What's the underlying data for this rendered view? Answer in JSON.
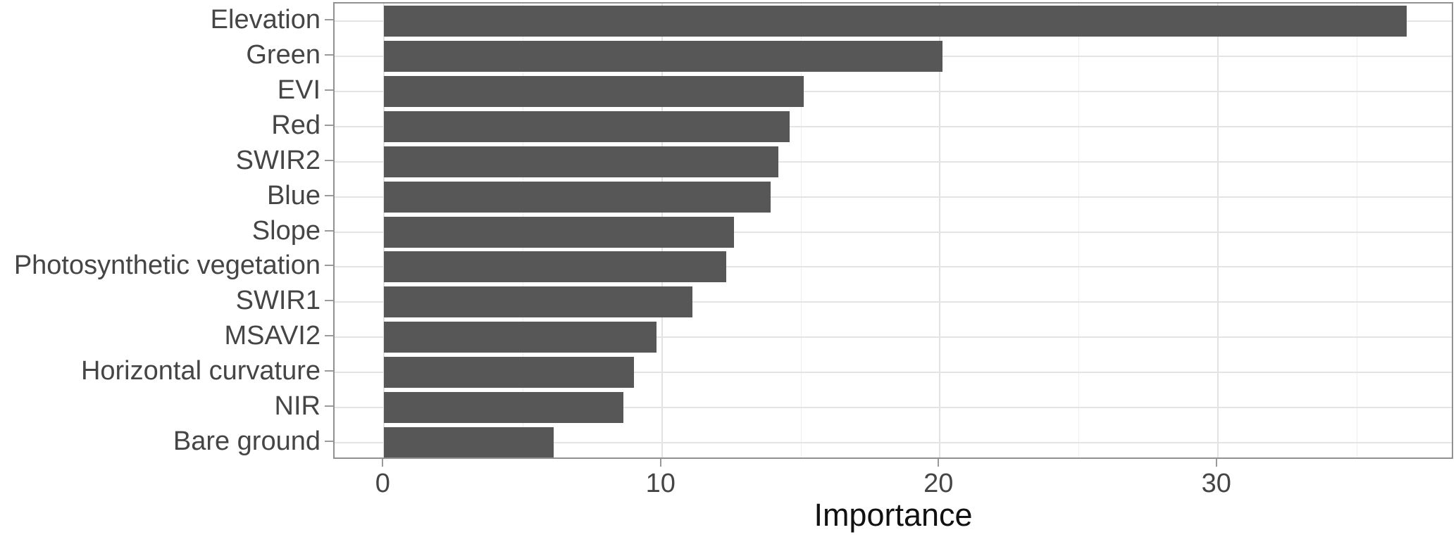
{
  "chart_data": {
    "type": "bar",
    "orientation": "horizontal",
    "title": "",
    "xlabel": "Importance",
    "ylabel": "",
    "categories": [
      "Elevation",
      "Green",
      "EVI",
      "Red",
      "SWIR2",
      "Blue",
      "Slope",
      "Photosynthetic vegetation",
      "SWIR1",
      "MSAVI2",
      "Horizontal curvature",
      "NIR",
      "Bare ground"
    ],
    "values": [
      36.8,
      20.1,
      15.1,
      14.6,
      14.2,
      13.9,
      12.6,
      12.3,
      11.1,
      9.8,
      9.0,
      8.6,
      6.1
    ],
    "xlim": [
      -1.84,
      38.46
    ],
    "xticks_major": [
      0,
      10,
      20,
      30
    ],
    "xticks_minor": [
      5,
      15,
      25,
      35
    ],
    "grid": "on",
    "legend": "none",
    "bar_color": "#575757",
    "gridline_color": "#e4e4e4",
    "panel_border_color": "#919191",
    "tick_color": "#9a9a9a",
    "axis_text_color": "#454545"
  },
  "layout_note": "horizontal bar chart of variable importance, bars sorted descending"
}
